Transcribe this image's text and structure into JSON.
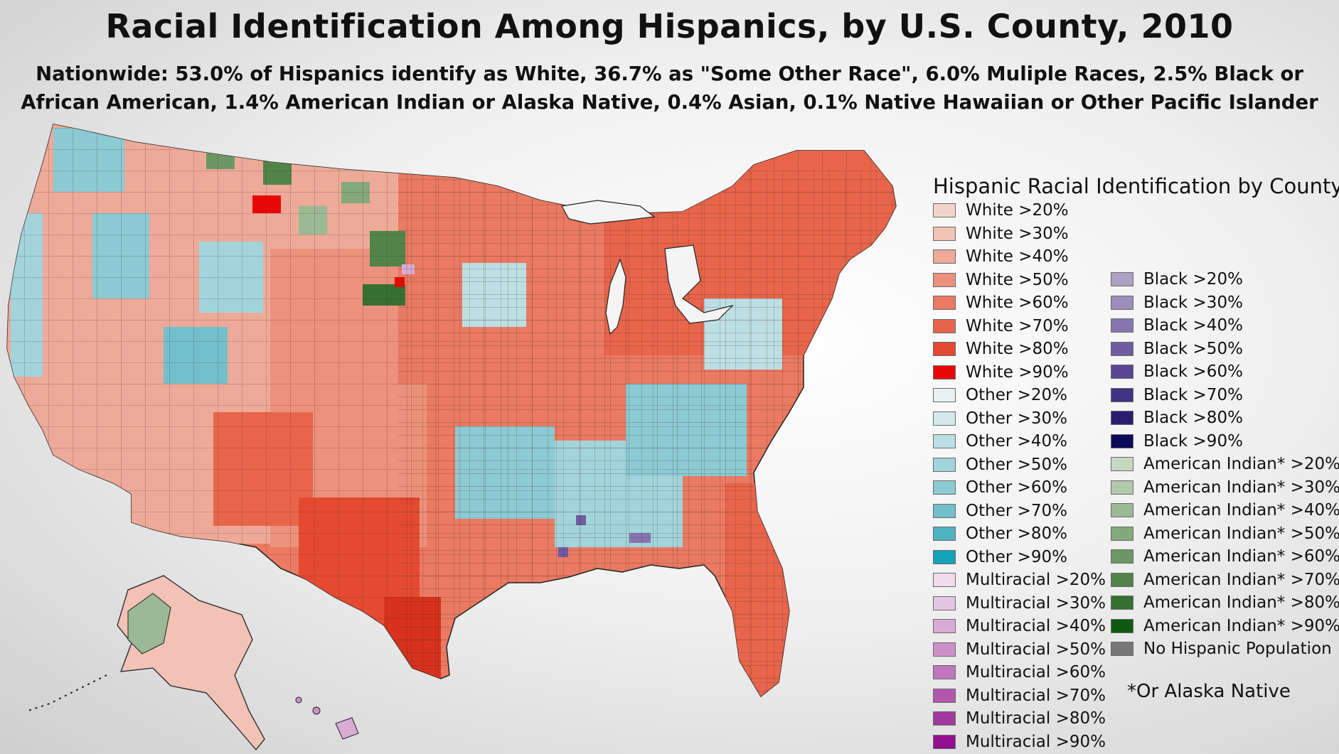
{
  "title": "Racial Identification Among Hispanics, by U.S. County, 2010",
  "subtitle_line1": "Nationwide: 53.0% of Hispanics identify as White, 36.7% as \"Some Other Race\", 6.0% Muliple Races, 2.5% Black or",
  "subtitle_line2": "African American, 1.4% American Indian or Alaska Native, 0.4% Asian, 0.1% Native Hawaiian or Other Pacific Islander",
  "legend": {
    "title": "Hispanic Racial Identification by County",
    "column1": [
      {
        "label": "White >20%",
        "color": "#f3d4cc"
      },
      {
        "label": "White >30%",
        "color": "#f1c2b5"
      },
      {
        "label": "White >40%",
        "color": "#eeaa98"
      },
      {
        "label": "White >50%",
        "color": "#ec927c"
      },
      {
        "label": "White >60%",
        "color": "#ea7a62"
      },
      {
        "label": "White >70%",
        "color": "#e8654b"
      },
      {
        "label": "White >80%",
        "color": "#e44a30"
      },
      {
        "label": "White >90%",
        "color": "#e80808"
      },
      {
        "label": "Other >20%",
        "color": "#e6f1f2"
      },
      {
        "label": "Other >30%",
        "color": "#d3e9ec"
      },
      {
        "label": "Other >40%",
        "color": "#bcdfe4"
      },
      {
        "label": "Other >50%",
        "color": "#a3d4dc"
      },
      {
        "label": "Other >60%",
        "color": "#8ccad4"
      },
      {
        "label": "Other >70%",
        "color": "#72c0cc"
      },
      {
        "label": "Other >80%",
        "color": "#4fb3c2"
      },
      {
        "label": "Other >90%",
        "color": "#14a4ba"
      },
      {
        "label": "Multiracial >20%",
        "color": "#efdcec"
      },
      {
        "label": "Multiracial >30%",
        "color": "#e4c6e1"
      },
      {
        "label": "Multiracial >40%",
        "color": "#d8acd4"
      },
      {
        "label": "Multiracial >50%",
        "color": "#cc92c8"
      },
      {
        "label": "Multiracial >60%",
        "color": "#bf76bb"
      },
      {
        "label": "Multiracial >70%",
        "color": "#b158ad"
      },
      {
        "label": "Multiracial >80%",
        "color": "#a2399e"
      },
      {
        "label": "Multiracial >90%",
        "color": "#92108d"
      }
    ],
    "column2": [
      {
        "label": "Black >20%",
        "color": "#aca2c4"
      },
      {
        "label": "Black >30%",
        "color": "#9a8eba"
      },
      {
        "label": "Black >40%",
        "color": "#8676b0"
      },
      {
        "label": "Black >50%",
        "color": "#6f5da2"
      },
      {
        "label": "Black >60%",
        "color": "#5a4794"
      },
      {
        "label": "Black >70%",
        "color": "#403384"
      },
      {
        "label": "Black >80%",
        "color": "#2a1d70"
      },
      {
        "label": "Black >90%",
        "color": "#0c0b5a"
      },
      {
        "label": "American Indian* >20%",
        "color": "#c8d7c2"
      },
      {
        "label": "American Indian* >30%",
        "color": "#b2c9ab"
      },
      {
        "label": "American Indian* >40%",
        "color": "#9bb994"
      },
      {
        "label": "American Indian* >50%",
        "color": "#84a97c"
      },
      {
        "label": "American Indian* >60%",
        "color": "#6c9764"
      },
      {
        "label": "American Indian* >70%",
        "color": "#52844a"
      },
      {
        "label": "American Indian* >80%",
        "color": "#377033"
      },
      {
        "label": "American Indian* >90%",
        "color": "#0f5a10"
      },
      {
        "label": "No Hispanic Population",
        "color": "#777777"
      }
    ]
  },
  "footnote": "*Or Alaska Native"
}
